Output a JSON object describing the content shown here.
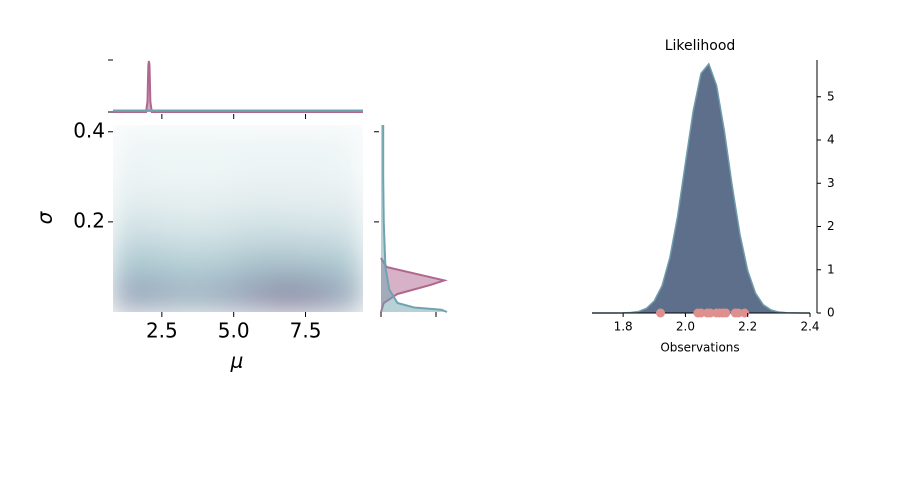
{
  "chart_data": [
    {
      "type": "heatmap",
      "xlabel": "μ",
      "ylabel": "σ",
      "xlim": [
        0.8,
        9.5
      ],
      "ylim": [
        0,
        0.415
      ],
      "xticks": [
        2.5,
        {
          "value": 5,
          "label": "5.0"
        },
        7.5
      ],
      "yticks": [
        0.2,
        0.4
      ],
      "x": [
        1.34,
        2.43,
        3.52,
        4.61,
        5.69,
        6.78,
        7.87,
        8.96
      ],
      "y": [
        0.035,
        0.104,
        0.173,
        0.242,
        0.311,
        0.38
      ],
      "z": [
        [
          0.55,
          0.5,
          0.45,
          0.5,
          0.6,
          0.7,
          0.65,
          0.5
        ],
        [
          0.35,
          0.33,
          0.3,
          0.32,
          0.38,
          0.4,
          0.38,
          0.33
        ],
        [
          0.2,
          0.18,
          0.16,
          0.17,
          0.2,
          0.2,
          0.19,
          0.18
        ],
        [
          0.1,
          0.09,
          0.08,
          0.09,
          0.1,
          0.1,
          0.09,
          0.09
        ],
        [
          0.05,
          0.04,
          0.04,
          0.04,
          0.05,
          0.05,
          0.05,
          0.04
        ],
        [
          0.03,
          0.03,
          0.03,
          0.03,
          0.03,
          0.03,
          0.03,
          0.03
        ]
      ],
      "colors": [
        "#f7fbfa",
        "#a9c6cf",
        "#8c8aa6"
      ]
    },
    {
      "type": "density",
      "xlim": [
        0.8,
        9.5
      ],
      "ylim": [
        0,
        1
      ],
      "xticks": [
        2.5,
        5,
        7.5
      ],
      "yticks": [
        0,
        1
      ],
      "series": [
        {
          "color": "#b0668e",
          "x": [
            0.8,
            1.95,
            2.0,
            2.03,
            2.05,
            2.07,
            2.1,
            2.15,
            9.5
          ],
          "values": [
            0,
            0,
            0.2,
            0.9,
            0.98,
            0.9,
            0.2,
            0,
            0
          ]
        },
        {
          "color": "#6fa3b0",
          "x": [
            0.8,
            9.5
          ],
          "values": [
            0.03,
            0.03
          ]
        }
      ]
    },
    {
      "type": "density-horizontal",
      "xlim": [
        0,
        1.25
      ],
      "ylim": [
        0,
        0.415
      ],
      "xticks": [
        0,
        1
      ],
      "yticks": [
        0.2,
        0.4
      ],
      "series": [
        {
          "color": "#b0668e",
          "y": [
            0.0,
            0.02,
            0.04,
            0.06,
            0.07,
            0.08,
            0.1,
            0.12
          ],
          "values": [
            0,
            0.05,
            0.3,
            0.9,
            1.15,
            0.8,
            0.1,
            0
          ]
        },
        {
          "color": "#6fa3b0",
          "y": [
            0,
            0.005,
            0.01,
            0.02,
            0.05,
            0.1,
            0.2,
            0.3,
            0.415
          ],
          "values": [
            1.2,
            1.1,
            0.6,
            0.3,
            0.15,
            0.08,
            0.05,
            0.04,
            0.04
          ]
        }
      ]
    },
    {
      "type": "area",
      "title": "Likelihood",
      "xlabel": "Observations",
      "xlim": [
        1.7,
        2.4
      ],
      "ylim": [
        0,
        5.85
      ],
      "xticks": [
        1.8,
        {
          "value": 2,
          "label": "2.0"
        },
        2.2,
        2.4
      ],
      "yticks": [
        0,
        1,
        2,
        3,
        4,
        5
      ],
      "color": "#5e6f8c",
      "edge_color": "#6f9bab",
      "x": [
        1.7,
        1.725,
        1.75,
        1.775,
        1.8,
        1.825,
        1.85,
        1.875,
        1.9,
        1.925,
        1.95,
        1.975,
        2.0,
        2.025,
        2.05,
        2.075,
        2.1,
        2.125,
        2.15,
        2.175,
        2.2,
        2.225,
        2.25,
        2.275,
        2.3,
        2.325,
        2.35,
        2.375,
        2.4
      ],
      "values": [
        0,
        0,
        0,
        0.0006,
        0.003,
        0.011,
        0.036,
        0.107,
        0.28,
        0.63,
        1.28,
        2.24,
        3.47,
        4.67,
        5.54,
        5.76,
        5.26,
        4.21,
        2.95,
        1.82,
        0.98,
        0.46,
        0.19,
        0.07,
        0.022,
        0.006,
        0.0016,
        0.0003,
        0
      ],
      "observations": {
        "color": "#e08f8f",
        "x": [
          1.92,
          2.04,
          2.05,
          2.07,
          2.08,
          2.1,
          2.11,
          2.12,
          2.13,
          2.16,
          2.17,
          2.19
        ]
      }
    }
  ]
}
